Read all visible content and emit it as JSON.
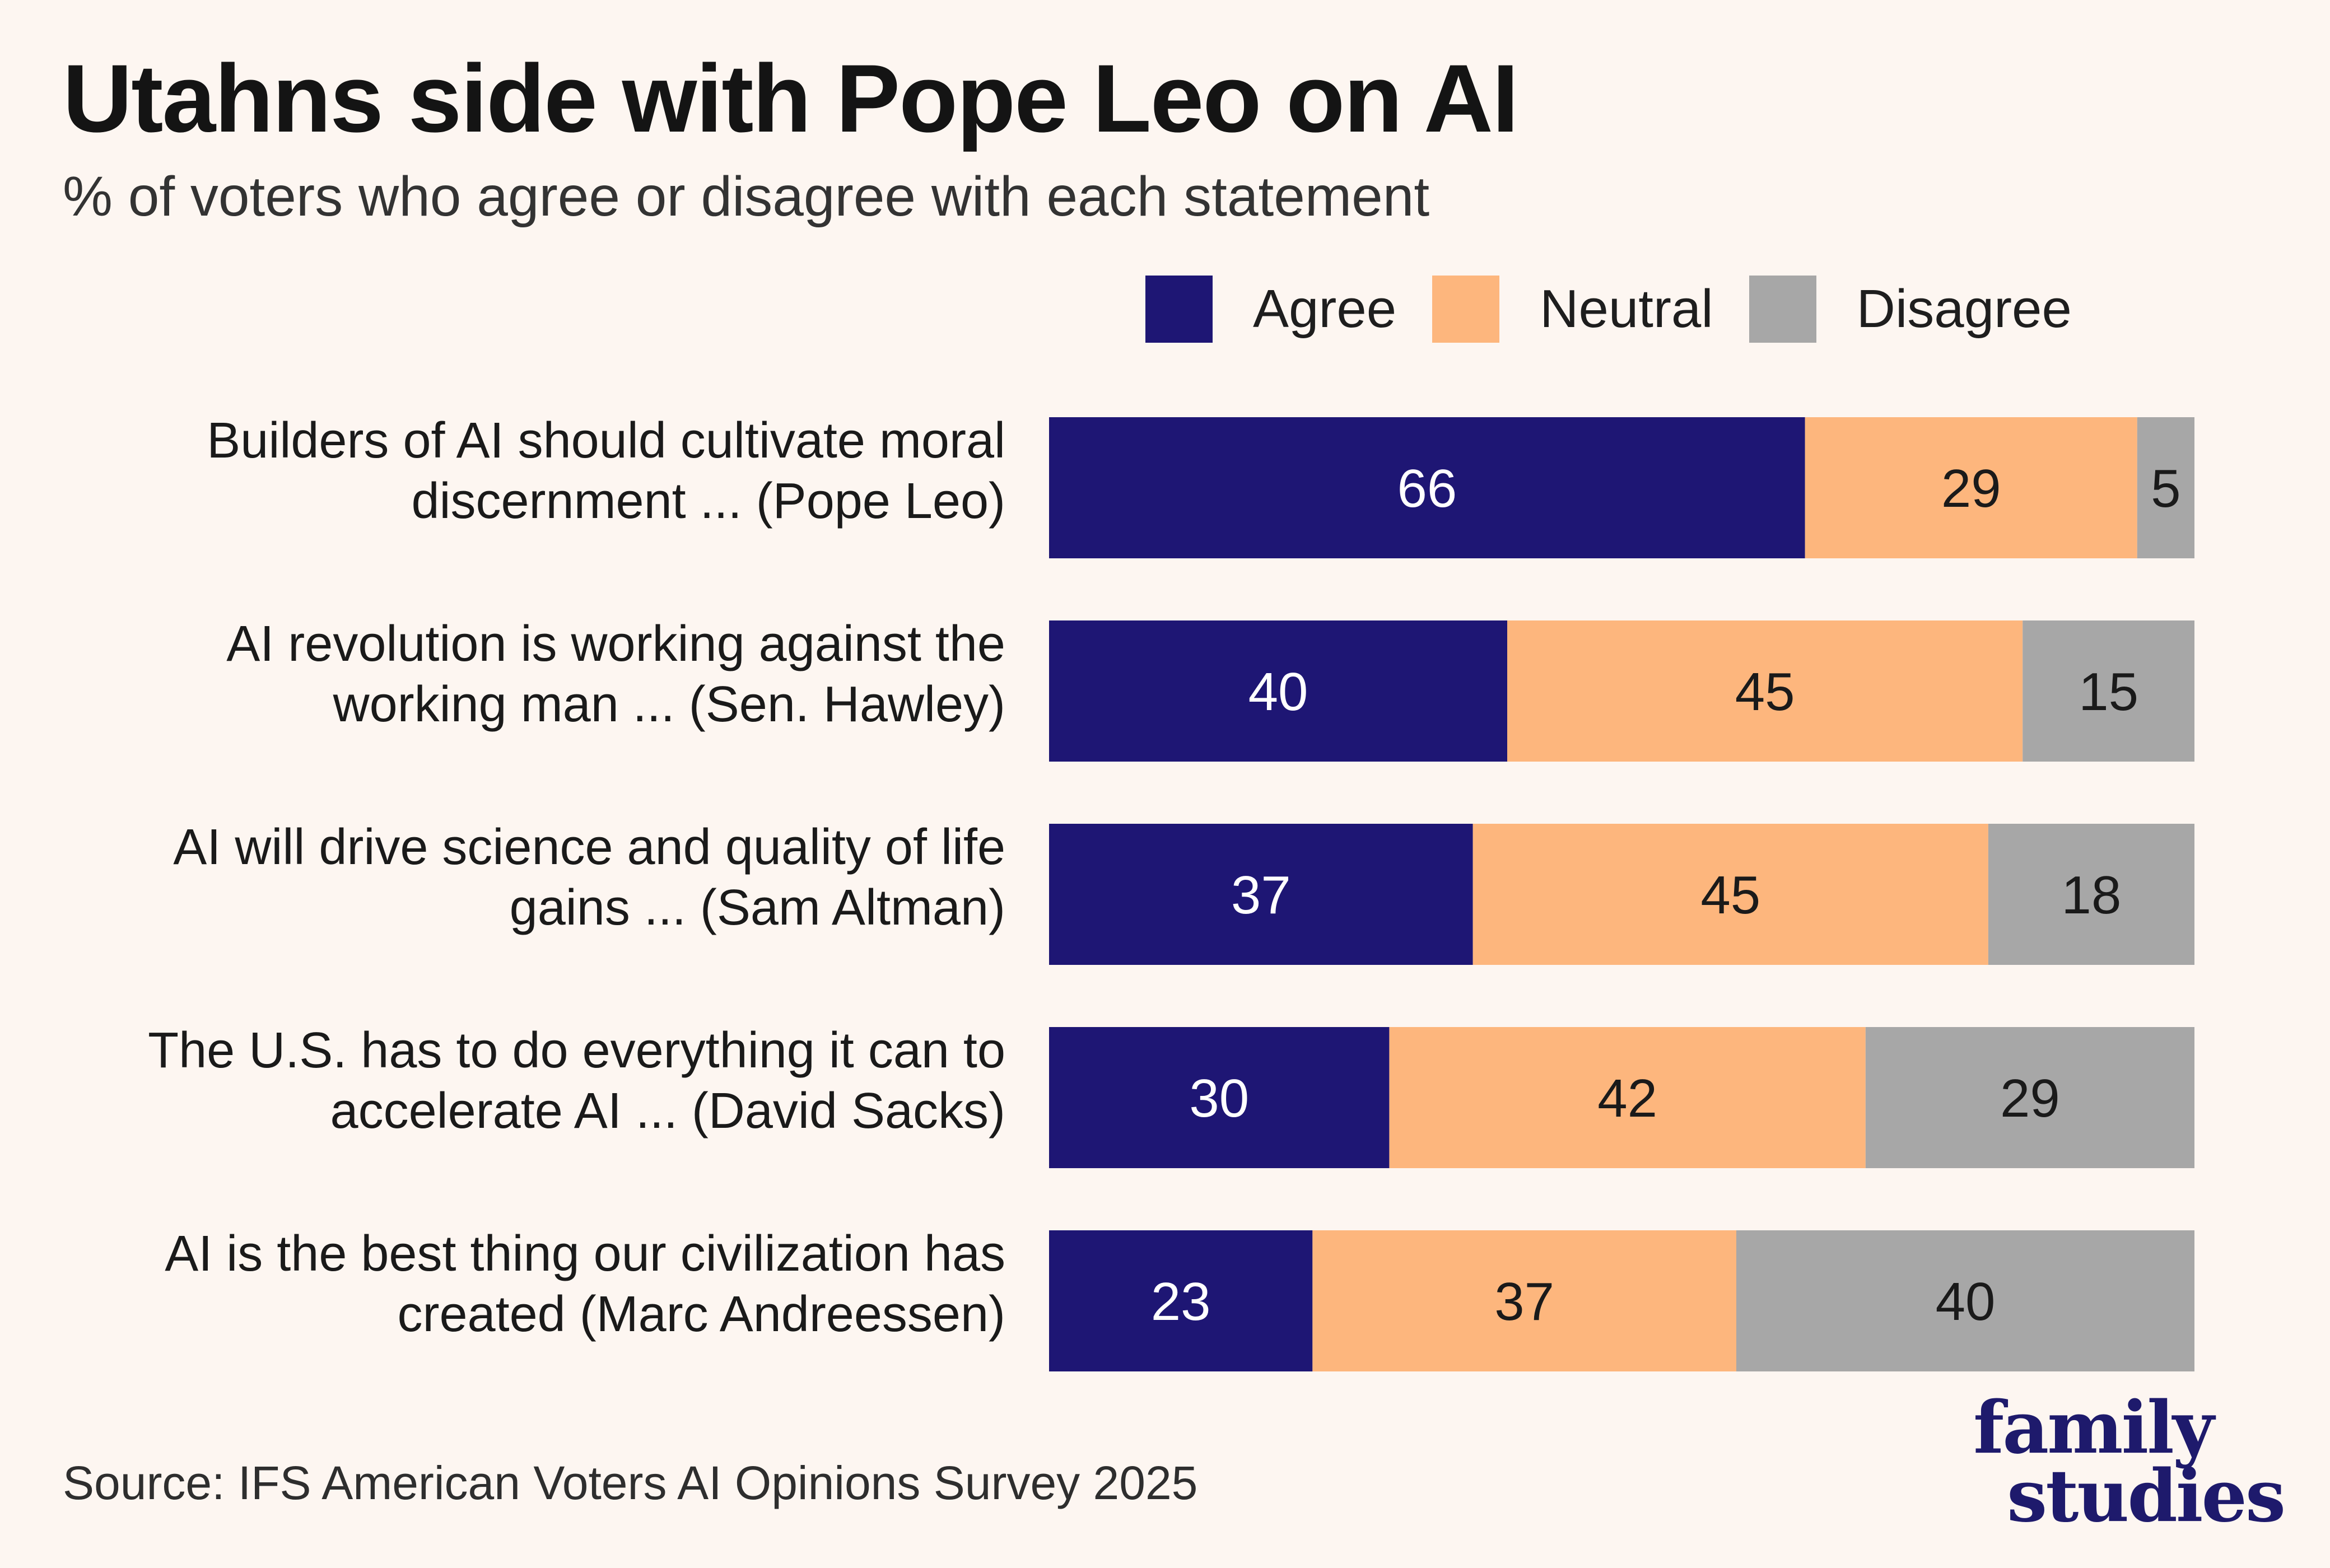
{
  "title": "Utahns side with Pope Leo on AI",
  "subtitle": "% of voters who agree or disagree with each statement",
  "source": "Source: IFS American Voters AI Opinions Survey 2025",
  "logo": {
    "line1": "family",
    "line2": "studies"
  },
  "colors": {
    "agree": "#1e1674",
    "neutral": "#fdb67d",
    "disagree": "#a7a7a7",
    "agree_text": "#ffffff",
    "dark_text": "#1a1a1a"
  },
  "chart_data": {
    "type": "bar",
    "orientation": "horizontal",
    "stacked": true,
    "title": "Utahns side with Pope Leo on AI",
    "subtitle": "% of voters who agree or disagree with each statement",
    "xlabel": "",
    "ylabel": "",
    "xlim": [
      0,
      100
    ],
    "grid": false,
    "legend_position": "top-right",
    "categories": [
      [
        "Builders of AI should cultivate moral",
        "discernment ... (Pope Leo)"
      ],
      [
        "AI revolution is working against the",
        "working man ... (Sen. Hawley)"
      ],
      [
        "AI will drive science and quality of life",
        "gains ... (Sam Altman)"
      ],
      [
        "The U.S. has to do everything it can to",
        "accelerate AI ... (David Sacks)"
      ],
      [
        "AI is the best thing our civilization has",
        "created (Marc Andreessen)"
      ]
    ],
    "series": [
      {
        "key": "agree",
        "name": "Agree",
        "values": [
          66,
          40,
          37,
          30,
          23
        ]
      },
      {
        "key": "neutral",
        "name": "Neutral",
        "values": [
          29,
          45,
          45,
          42,
          37
        ]
      },
      {
        "key": "disagree",
        "name": "Disagree",
        "values": [
          5,
          15,
          18,
          29,
          40
        ]
      }
    ]
  }
}
